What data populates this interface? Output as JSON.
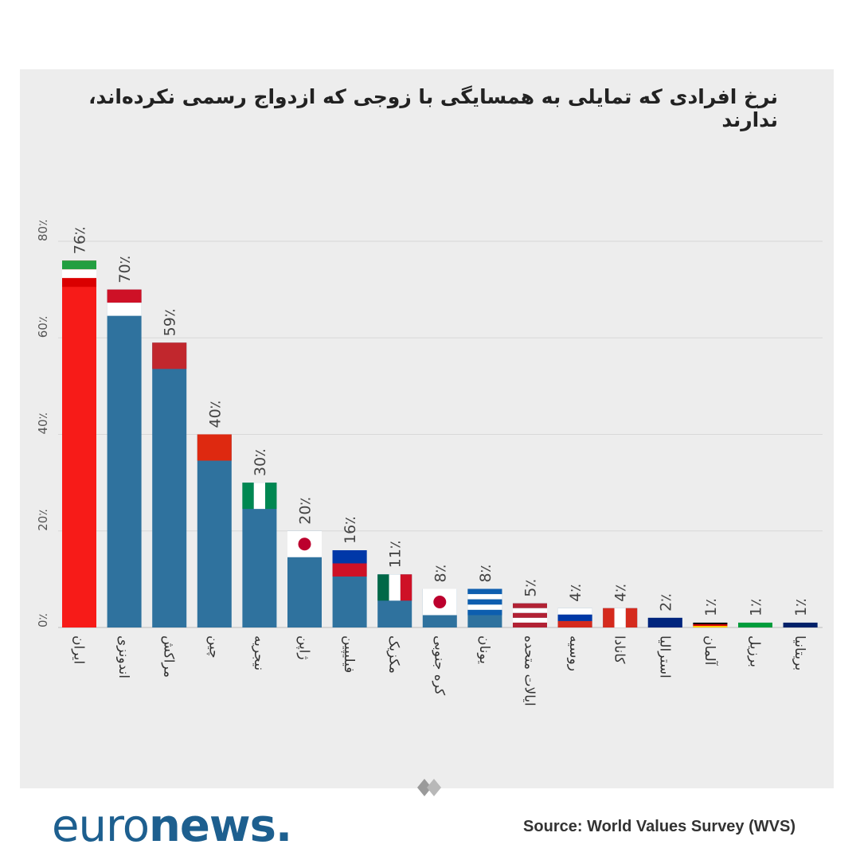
{
  "chart_data": {
    "type": "bar",
    "title": "نرخ افرادی که تمایلی به همسایگی با زوجی که ازدواج رسمی نکرده‌اند، ندارند",
    "categories": [
      "ایران",
      "اندونزی",
      "مراکش",
      "چین",
      "نیجریه",
      "ژاپن",
      "فیلیپین",
      "مکزیک",
      "کره جنوبی",
      "یونان",
      "ایالات متحده",
      "روسیه",
      "کانادا",
      "استرالیا",
      "آلمان",
      "برزیل",
      "بریتانیا"
    ],
    "values": [
      76,
      70,
      59,
      40,
      30,
      20,
      16,
      11,
      8,
      8,
      5,
      4,
      4,
      2,
      1,
      1,
      1
    ],
    "value_labels": [
      "76٪",
      "70٪",
      "59٪",
      "40٪",
      "30٪",
      "20٪",
      "16٪",
      "11٪",
      "8٪",
      "8٪",
      "5٪",
      "4٪",
      "4٪",
      "2٪",
      "1٪",
      "1٪",
      "1٪"
    ],
    "ylim": [
      0,
      80
    ],
    "yticks": [
      0,
      20,
      40,
      60,
      80
    ],
    "ytick_labels": [
      "0٪",
      "20٪",
      "40٪",
      "60٪",
      "80٪"
    ],
    "grid": true,
    "colors": {
      "default": "#2f729e",
      "highlight": "#f71b18"
    },
    "highlight_index": 0,
    "flags": [
      [
        "#239f40",
        "#ffffff",
        "#da0000"
      ],
      [
        "#ce1126",
        "#ffffff"
      ],
      [
        "#c1272d"
      ],
      [
        "#de2910"
      ],
      [
        "#008751",
        "#ffffff",
        "#008751",
        "v"
      ],
      [
        "#ffffff"
      ],
      [
        "#0038a8",
        "#ce1126"
      ],
      [
        "#006847",
        "#ffffff",
        "#ce1126",
        "v"
      ],
      [
        "#ffffff"
      ],
      [
        "#0d5eaf",
        "#ffffff",
        "#0d5eaf",
        "#ffffff",
        "#0d5eaf"
      ],
      [
        "#b22234",
        "#ffffff",
        "#b22234",
        "#ffffff",
        "#b22234"
      ],
      [
        "#ffffff",
        "#0039a6",
        "#d52b1e"
      ],
      [
        "#d52b1e",
        "#ffffff",
        "#d52b1e",
        "v"
      ],
      [
        "#00247d"
      ],
      [
        "#000000",
        "#dd0000",
        "#ffce00"
      ],
      [
        "#009c3b"
      ],
      [
        "#012169"
      ]
    ]
  },
  "source": "Source: World Values Survey (WVS)",
  "logo": {
    "part1": "euro",
    "part2": "news."
  }
}
